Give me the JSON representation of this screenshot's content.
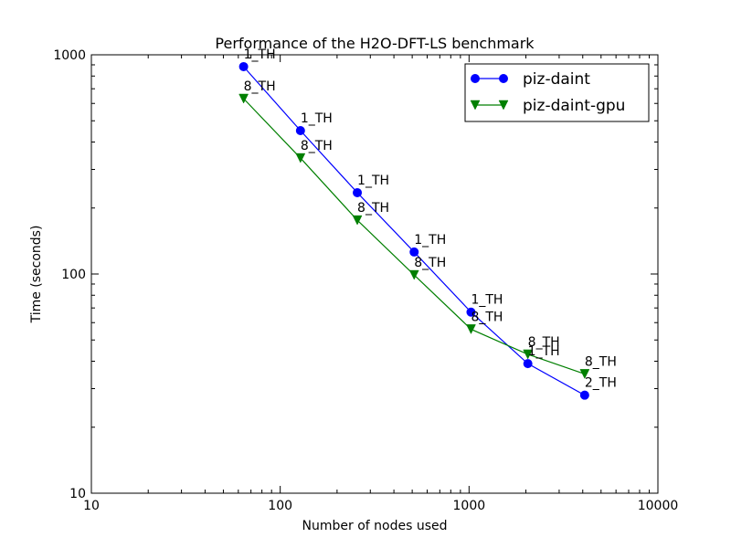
{
  "chart_data": {
    "type": "line",
    "title": "Performance of the H2O-DFT-LS benchmark",
    "xlabel": "Number of nodes used",
    "ylabel": "Time (seconds)",
    "xscale": "log",
    "yscale": "log",
    "xlim": [
      10,
      10000
    ],
    "ylim": [
      10,
      1000
    ],
    "xticks": [
      10,
      100,
      1000,
      10000
    ],
    "xtick_labels": [
      "10",
      "100",
      "1000",
      "10000"
    ],
    "yticks": [
      10,
      100,
      1000
    ],
    "ytick_labels": [
      "10",
      "100",
      "1000"
    ],
    "grid": false,
    "legend_position": "top-right",
    "series": [
      {
        "name": "piz-daint",
        "color": "#0000ff",
        "marker": "circle",
        "x": [
          64,
          128,
          256,
          512,
          1024,
          2048,
          4096
        ],
        "y": [
          883,
          451,
          235,
          126,
          67,
          39,
          28
        ],
        "labels": [
          "1_TH",
          "1_TH",
          "1_TH",
          "1_TH",
          "1_TH",
          "1_TH",
          "2_TH"
        ]
      },
      {
        "name": "piz-daint-gpu",
        "color": "#007f00",
        "marker": "triangle-down",
        "x": [
          64,
          128,
          256,
          512,
          1024,
          2048,
          4096
        ],
        "y": [
          631,
          338,
          176,
          99,
          56,
          43,
          35
        ],
        "labels": [
          "8_TH",
          "8_TH",
          "8_TH",
          "8_TH",
          "8_TH",
          "8_TH",
          "8_TH"
        ]
      }
    ]
  }
}
